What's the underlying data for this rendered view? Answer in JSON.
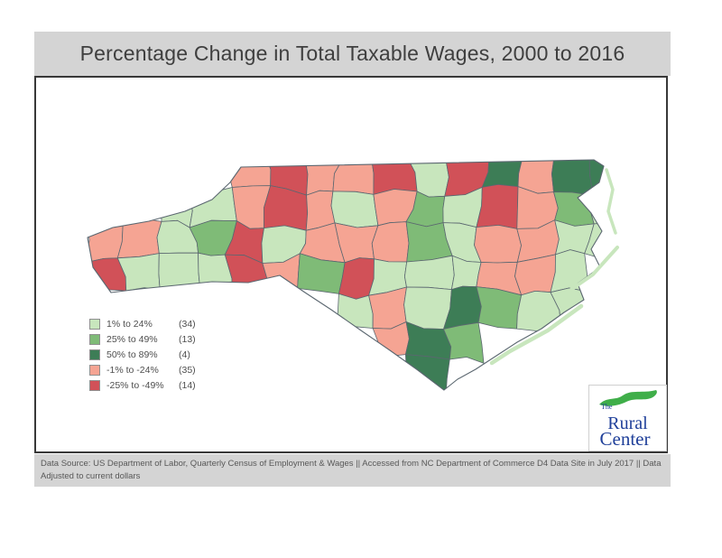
{
  "title": "Percentage Change in Total Taxable Wages, 2000 to 2016",
  "legend": {
    "items": [
      {
        "label": "1% to 24%",
        "count": "(34)",
        "color": "#c8e6bd"
      },
      {
        "label": "25% to 49%",
        "count": "(13)",
        "color": "#7fbb77"
      },
      {
        "label": "50% to 89%",
        "count": "(4)",
        "color": "#3d7d56"
      },
      {
        "label": "-1% to -24%",
        "count": "(35)",
        "color": "#f5a493"
      },
      {
        "label": "-25% to -49%",
        "count": "(14)",
        "color": "#d15158"
      }
    ]
  },
  "logo": {
    "the": "The",
    "line1": "Rural",
    "line2": "Center",
    "text_color": "#20409a",
    "swoosh_color": "#3fae49"
  },
  "footer": {
    "text": "Data Source: US Department of Labor, Quarterly Census of Employment & Wages || Accessed from NC Department of Commerce D4 Data Site in July 2017 || Data Adjusted to current dollars"
  },
  "colors": {
    "header_bg": "#d4d4d4",
    "panel_border": "#383838",
    "county_border": "#5b6770",
    "title_text": "#3f3f3f",
    "footer_text": "#585858"
  },
  "chart_data": {
    "type": "choropleth",
    "region": "North Carolina counties",
    "title": "Percentage Change in Total Taxable Wages, 2000 to 2016",
    "legend_position": "bottom-left",
    "categories": [
      {
        "label": "1% to 24%",
        "count": 34,
        "color": "#c8e6bd"
      },
      {
        "label": "25% to 49%",
        "count": 13,
        "color": "#7fbb77"
      },
      {
        "label": "50% to 89%",
        "count": 4,
        "color": "#3d7d56"
      },
      {
        "label": "-1% to -24%",
        "count": 35,
        "color": "#f5a493"
      },
      {
        "label": "-25% to -49%",
        "count": 14,
        "color": "#d15158"
      }
    ],
    "color_codes": {
      "L": "#c8e6bd",
      "M": "#7fbb77",
      "D": "#3d7d56",
      "S": "#f5a493",
      "R": "#d15158"
    },
    "grid_rows": [
      "....SRSSRLRDSDD",
      "..LLSRSLSMLRSML",
      "SSLMRLSSSMLSSLL",
      "RLLLRSMRLLLSSL.",
      ".......LSLDMLL.",
      "........SDM....",
      ".........D....."
    ]
  }
}
